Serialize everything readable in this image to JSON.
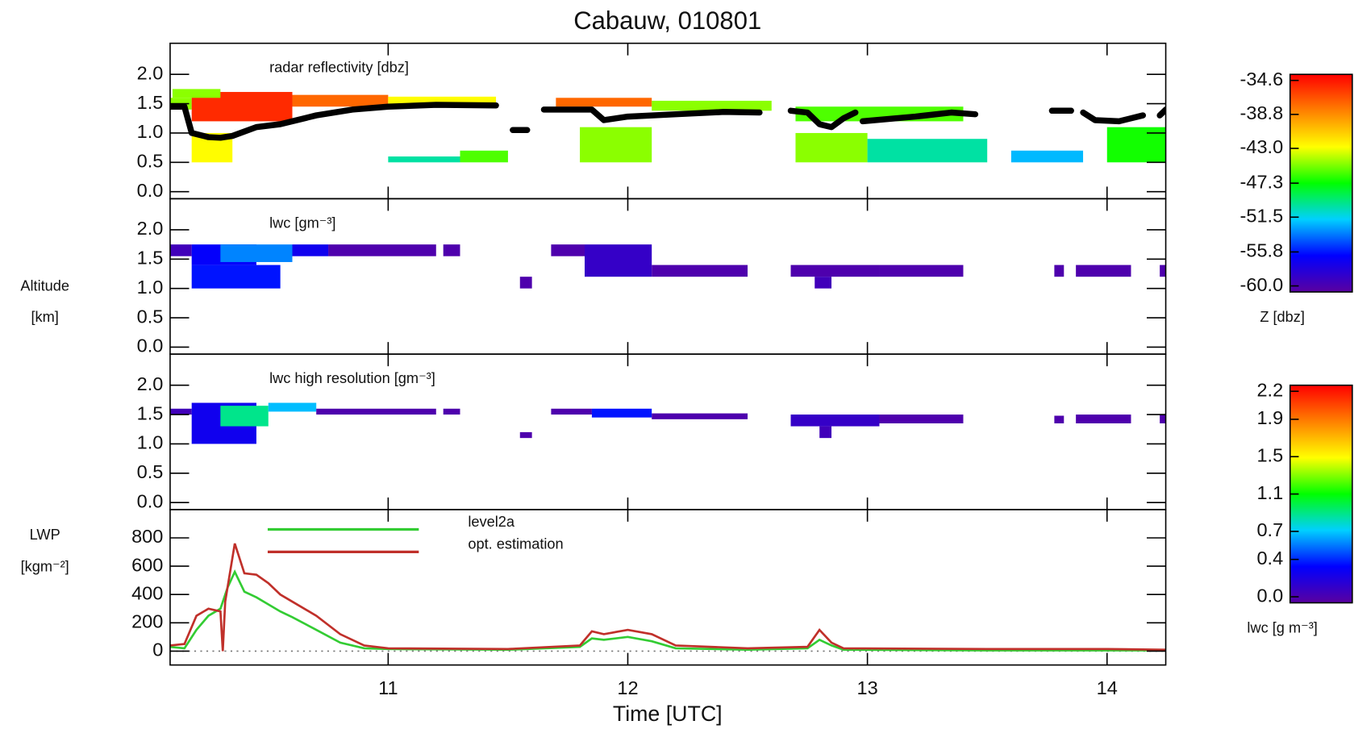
{
  "title": "Cabauw, 010801",
  "chart_data": [
    {
      "type": "heatmap",
      "label": "radar reflectivity [dbz]",
      "xlim": [
        10.09,
        14.245
      ],
      "xticks": [
        11,
        12,
        13,
        14
      ],
      "ylim": [
        -0.12,
        2.53
      ],
      "yticks": [
        {
          "value": 2,
          "label": "2.0"
        },
        1.5,
        {
          "value": 1,
          "label": "1.0"
        },
        0.5,
        {
          "value": 0,
          "label": "0.0"
        }
      ],
      "cells": {
        "x": [
          10.09,
          10.18,
          10.18,
          10.6,
          11.0,
          10.1,
          11.7,
          12.1,
          11.8,
          12.7,
          12.7,
          13.0,
          14.0,
          13.6,
          11.3,
          11.0
        ],
        "x_end": [
          10.18,
          10.6,
          10.35,
          11.0,
          11.45,
          10.3,
          12.1,
          12.6,
          12.1,
          13.0,
          13.4,
          13.5,
          14.245,
          13.9,
          11.5,
          11.3
        ],
        "y": [
          1.4,
          1.2,
          0.5,
          1.45,
          1.5,
          1.6,
          1.45,
          1.38,
          0.5,
          0.5,
          1.2,
          0.5,
          0.5,
          0.5,
          0.5,
          0.5
        ],
        "y_end": [
          1.6,
          1.7,
          1.0,
          1.65,
          1.62,
          1.75,
          1.6,
          1.55,
          1.1,
          1.0,
          1.45,
          0.9,
          1.1,
          0.7,
          0.7,
          0.6
        ],
        "values": [
          -45,
          -36,
          -43,
          -38,
          -43,
          -45,
          -38,
          -45,
          -45,
          -45,
          -46,
          -50,
          -47,
          -52,
          -46,
          -50
        ]
      },
      "cloud_base": {
        "color": "#000000",
        "x": [
          10.09,
          10.15,
          10.18,
          10.25,
          10.3,
          10.35,
          10.45,
          10.55,
          10.7,
          10.85,
          11.0,
          11.2,
          11.45,
          11.5,
          11.52,
          11.58,
          11.62,
          11.65,
          11.85,
          11.9,
          12.0,
          12.2,
          12.4,
          12.55,
          12.62,
          12.68,
          12.75,
          12.8,
          12.85,
          12.9,
          12.95,
          12.97,
          12.98,
          13.2,
          13.35,
          13.45,
          13.6,
          13.77,
          13.85,
          13.88,
          13.9,
          13.95,
          14.05,
          14.15,
          14.2,
          14.22,
          14.245
        ],
        "values": [
          1.45,
          1.45,
          1.0,
          0.93,
          0.92,
          0.95,
          1.1,
          1.15,
          1.3,
          1.4,
          1.45,
          1.48,
          1.47,
          null,
          1.05,
          1.05,
          null,
          1.4,
          1.4,
          1.22,
          1.28,
          1.32,
          1.36,
          1.35,
          null,
          1.38,
          1.35,
          1.15,
          1.1,
          1.25,
          1.35,
          null,
          1.2,
          1.28,
          1.35,
          1.32,
          null,
          1.38,
          1.38,
          null,
          1.35,
          1.22,
          1.2,
          1.3,
          null,
          1.3,
          1.4
        ]
      }
    },
    {
      "type": "heatmap",
      "label": "lwc [gm⁻³]",
      "ylabel": [
        "Altitude",
        "[km]"
      ],
      "xlim": [
        10.09,
        14.245
      ],
      "xticks": [
        11,
        12,
        13,
        14
      ],
      "ylim": [
        -0.12,
        2.53
      ],
      "yticks": [
        {
          "value": 2,
          "label": "2.0"
        },
        1.5,
        {
          "value": 1,
          "label": "1.0"
        },
        0.5,
        {
          "value": 0,
          "label": "0.0"
        }
      ],
      "cells": {
        "x": [
          10.09,
          10.18,
          10.3,
          10.18,
          10.6,
          10.75,
          11.23,
          11.55,
          11.68,
          11.82,
          12.1,
          12.68,
          12.78,
          13.05,
          13.78,
          13.87,
          14.22
        ],
        "x_end": [
          10.18,
          10.45,
          10.6,
          10.55,
          10.75,
          11.2,
          11.3,
          11.6,
          11.82,
          12.1,
          12.5,
          13.05,
          12.85,
          13.4,
          13.82,
          14.1,
          14.245
        ],
        "y": [
          1.55,
          1.4,
          1.45,
          1.0,
          1.55,
          1.55,
          1.55,
          1.0,
          1.55,
          1.2,
          1.2,
          1.2,
          1.0,
          1.2,
          1.2,
          1.2,
          1.2
        ],
        "y_end": [
          1.75,
          1.75,
          1.75,
          1.4,
          1.75,
          1.75,
          1.75,
          1.2,
          1.75,
          1.75,
          1.4,
          1.4,
          1.2,
          1.4,
          1.4,
          1.4,
          1.4
        ],
        "values": [
          0.1,
          0.35,
          0.6,
          0.4,
          0.3,
          0.05,
          0.05,
          0.05,
          0.05,
          0.15,
          0.05,
          0.05,
          0.1,
          0.05,
          0.05,
          0.05,
          0.05
        ]
      }
    },
    {
      "type": "heatmap",
      "label": "lwc high resolution [gm⁻³]",
      "xlim": [
        10.09,
        14.245
      ],
      "xticks": [
        11,
        12,
        13,
        14
      ],
      "ylim": [
        -0.12,
        2.53
      ],
      "yticks": [
        {
          "value": 2,
          "label": "2.0"
        },
        1.5,
        {
          "value": 1,
          "label": "1.0"
        },
        0.5,
        {
          "value": 0,
          "label": "0.0"
        }
      ],
      "cells": {
        "x": [
          10.09,
          10.18,
          10.3,
          10.5,
          10.7,
          11.23,
          11.55,
          11.68,
          11.85,
          12.1,
          12.68,
          12.8,
          13.05,
          13.78,
          13.87,
          14.22
        ],
        "x_end": [
          10.18,
          10.45,
          10.5,
          10.7,
          11.2,
          11.3,
          11.6,
          11.85,
          12.1,
          12.5,
          13.05,
          12.85,
          13.4,
          13.82,
          14.1,
          14.245
        ],
        "y": [
          1.5,
          1.0,
          1.3,
          1.55,
          1.5,
          1.5,
          1.1,
          1.5,
          1.45,
          1.42,
          1.3,
          1.1,
          1.35,
          1.35,
          1.35,
          1.35
        ],
        "y_end": [
          1.6,
          1.7,
          1.65,
          1.7,
          1.6,
          1.6,
          1.2,
          1.6,
          1.6,
          1.52,
          1.5,
          1.3,
          1.5,
          1.48,
          1.5,
          1.5
        ],
        "values": [
          0.1,
          0.3,
          0.9,
          0.7,
          0.05,
          0.05,
          0.05,
          0.05,
          0.4,
          0.05,
          0.15,
          0.1,
          0.05,
          0.05,
          0.05,
          0.05
        ]
      }
    },
    {
      "type": "line",
      "ylabel": [
        "LWP",
        "[kgm⁻²]"
      ],
      "xlabel": "Time [UTC]",
      "xlim": [
        10.09,
        14.245
      ],
      "xticks": [
        11,
        12,
        13,
        14
      ],
      "ylim": [
        -98,
        1000
      ],
      "yticks": [
        800,
        600,
        400,
        200,
        0
      ],
      "zero_line": true,
      "series": [
        {
          "name": "level2a",
          "color": "#33cc33",
          "x": [
            10.09,
            10.15,
            10.2,
            10.25,
            10.3,
            10.33,
            10.36,
            10.4,
            10.45,
            10.5,
            10.55,
            10.6,
            10.7,
            10.8,
            10.9,
            11.0,
            11.5,
            11.8,
            11.85,
            11.9,
            12.0,
            12.1,
            12.2,
            12.5,
            12.75,
            12.8,
            12.85,
            12.9,
            13.5,
            14.0,
            14.245
          ],
          "values": [
            30,
            20,
            150,
            250,
            300,
            450,
            560,
            420,
            380,
            330,
            280,
            240,
            150,
            60,
            20,
            15,
            10,
            30,
            90,
            80,
            100,
            70,
            20,
            10,
            20,
            80,
            40,
            10,
            5,
            5,
            5
          ]
        },
        {
          "name": "opt. estimation",
          "color": "#c0302a",
          "x": [
            10.09,
            10.15,
            10.2,
            10.25,
            10.3,
            10.31,
            10.32,
            10.36,
            10.4,
            10.45,
            10.5,
            10.55,
            10.6,
            10.7,
            10.8,
            10.9,
            11.0,
            11.5,
            11.8,
            11.85,
            11.9,
            12.0,
            12.1,
            12.2,
            12.5,
            12.75,
            12.8,
            12.85,
            12.9,
            13.5,
            14.0,
            14.245
          ],
          "values": [
            40,
            50,
            250,
            300,
            280,
            0,
            350,
            760,
            550,
            540,
            480,
            400,
            350,
            250,
            120,
            40,
            20,
            15,
            40,
            140,
            120,
            150,
            120,
            40,
            20,
            30,
            150,
            60,
            20,
            15,
            15,
            10
          ]
        }
      ]
    },
    {
      "type": "colorbar",
      "label": "Z [dbz]",
      "zlim": [
        -60.0,
        -34.6
      ],
      "ticks": [
        -34.6,
        -38.8,
        {
          "value": -43,
          "label": "-43.0"
        },
        -47.3,
        -51.5,
        -55.8,
        {
          "value": -60,
          "label": "-60.0"
        }
      ],
      "colors": [
        "#5a00a0",
        "#0000ff",
        "#00d0ff",
        "#00ff00",
        "#ffff00",
        "#ff8000",
        "#ff0000"
      ]
    },
    {
      "type": "colorbar",
      "label": "lwc [g m⁻³]",
      "zlim": [
        0,
        2.2
      ],
      "ticks": [
        2.2,
        1.9,
        1.5,
        1.1,
        0.7,
        0.4,
        {
          "value": 0,
          "label": "0.0"
        }
      ],
      "colors": [
        "#5a00a0",
        "#0000ff",
        "#00d0ff",
        "#00ff00",
        "#ffff00",
        "#ff8000",
        "#ff0000"
      ]
    }
  ]
}
